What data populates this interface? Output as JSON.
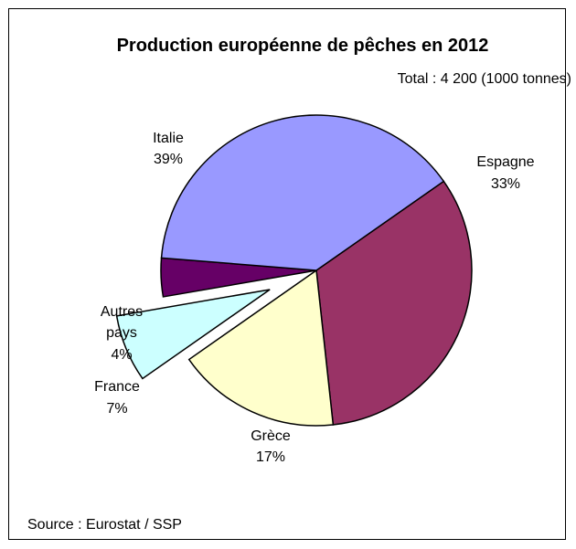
{
  "chart_data": {
    "type": "pie",
    "title": "Production européenne de pêches en 2012",
    "subtitle": "Total : 4 200 (1000 tonnes)",
    "source": "Source : Eurostat / SSP",
    "slices": [
      {
        "label": "Italie",
        "value_label": "39%",
        "value": 39,
        "color": "#9999FF"
      },
      {
        "label": "Espagne",
        "value_label": "33%",
        "value": 33,
        "color": "#993366"
      },
      {
        "label": "Grèce",
        "value_label": "17%",
        "value": 17,
        "color": "#FFFFCC"
      },
      {
        "label": "France",
        "value_label": "7%",
        "value": 7,
        "color": "#CCFFFF",
        "exploded": true
      },
      {
        "label": "Autres pays",
        "label_lines": [
          "Autres",
          "pays"
        ],
        "value_label": "4%",
        "value": 4,
        "color": "#660066"
      }
    ]
  }
}
